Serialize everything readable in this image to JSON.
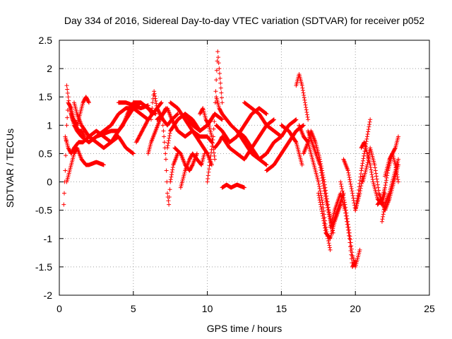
{
  "chart_data": {
    "type": "scatter",
    "title": "Day 334 of 2016, Sidereal Day-to-day VTEC variation (SDTVAR) for receiver p052",
    "xlabel": "GPS time / hours",
    "ylabel": "SDTVAR / TECUs",
    "xlim": [
      0,
      25
    ],
    "ylim": [
      -2,
      2.5
    ],
    "x_ticks": [
      0,
      5,
      10,
      15,
      20,
      25
    ],
    "x_tick_labels": [
      "0",
      "5",
      "10",
      "15",
      "20",
      "25"
    ],
    "y_ticks": [
      -2,
      -1.5,
      -1,
      -0.5,
      0,
      0.5,
      1,
      1.5,
      2,
      2.5
    ],
    "y_tick_labels": [
      "-2",
      "-1.5",
      "-1",
      "-0.5",
      "0",
      "0.5",
      "1",
      "1.5",
      "2",
      "2.5"
    ],
    "grid": true,
    "marker": "+",
    "series": [
      {
        "name": "SDTVAR",
        "color": "#ff0000",
        "tracks": [
          {
            "x": [
              0.3,
              0.4,
              0.5,
              0.6,
              0.8,
              1.0,
              1.2,
              1.4,
              1.6,
              1.8,
              2.0
            ],
            "y": [
              -0.4,
              0.2,
              1.0,
              1.4,
              1.3,
              1.1,
              1.0,
              1.2,
              1.4,
              1.5,
              1.4
            ]
          },
          {
            "x": [
              0.4,
              0.6,
              0.8,
              1.0,
              1.3,
              1.6,
              2.0,
              2.5,
              3.0,
              3.5,
              4.0,
              4.5,
              5.0,
              5.5,
              6.0,
              6.3
            ],
            "y": [
              0.8,
              0.6,
              0.5,
              0.6,
              0.7,
              0.7,
              0.8,
              0.9,
              0.8,
              0.7,
              0.9,
              1.1,
              1.3,
              1.4,
              1.3,
              1.2
            ]
          },
          {
            "x": [
              0.5,
              0.8,
              1.0,
              1.2,
              1.5,
              1.8,
              2.0,
              2.5,
              3.0
            ],
            "y": [
              0.0,
              0.3,
              0.5,
              0.6,
              0.4,
              0.3,
              0.3,
              0.35,
              0.3
            ]
          },
          {
            "x": [
              0.8,
              1.0,
              1.2,
              1.5,
              2.0,
              2.5,
              3.0,
              3.5,
              4.0,
              4.5,
              5.0,
              5.5,
              6.0
            ],
            "y": [
              1.2,
              1.0,
              0.9,
              0.8,
              0.7,
              0.8,
              0.9,
              1.0,
              1.2,
              1.3,
              1.3,
              1.2,
              1.1
            ]
          },
          {
            "x": [
              1.0,
              1.2,
              1.5,
              2.0,
              2.5,
              3.0,
              3.5,
              4.0,
              4.5,
              5.0
            ],
            "y": [
              1.4,
              1.2,
              1.0,
              0.8,
              0.7,
              0.6,
              0.7,
              0.8,
              0.6,
              0.5
            ]
          },
          {
            "x": [
              0.5,
              0.6,
              0.7,
              0.9,
              1.1,
              1.3,
              1.5,
              1.7
            ],
            "y": [
              1.7,
              1.5,
              1.3,
              1.1,
              1.0,
              0.9,
              0.9,
              0.8
            ]
          },
          {
            "x": [
              2.0,
              2.5,
              3.0,
              3.5,
              4.0,
              4.3,
              4.6,
              5.0,
              5.5,
              6.0,
              6.5
            ],
            "y": [
              0.7,
              0.8,
              0.85,
              0.9,
              0.9,
              1.0,
              1.2,
              1.4,
              1.4,
              1.3,
              1.2
            ]
          },
          {
            "x": [
              4.0,
              4.5,
              5.0,
              5.5,
              6.0
            ],
            "y": [
              1.4,
              1.4,
              1.35,
              1.3,
              1.35
            ]
          },
          {
            "x": [
              5.2,
              5.6,
              6.0,
              6.3,
              6.6,
              6.9
            ],
            "y": [
              0.7,
              0.9,
              1.1,
              1.2,
              1.3,
              1.4
            ]
          },
          {
            "x": [
              6.0,
              6.2,
              6.5,
              6.8,
              7.0,
              7.2
            ],
            "y": [
              0.5,
              0.7,
              0.9,
              1.1,
              1.2,
              1.3
            ]
          },
          {
            "x": [
              6.2,
              6.3,
              6.4,
              6.6,
              6.8,
              7.0,
              7.3,
              7.6,
              8.0
            ],
            "y": [
              1.1,
              1.4,
              1.6,
              1.3,
              1.2,
              1.1,
              1.0,
              1.1,
              1.2
            ]
          },
          {
            "x": [
              6.6,
              7.0,
              7.3,
              7.6,
              8.0,
              8.5,
              9.0,
              9.5,
              10.0,
              10.3
            ],
            "y": [
              1.1,
              1.2,
              1.3,
              1.1,
              0.9,
              0.8,
              0.9,
              0.8,
              0.8,
              0.7
            ]
          },
          {
            "x": [
              7.0,
              7.1,
              7.2,
              7.3,
              7.4,
              7.5,
              7.7,
              8.0
            ],
            "y": [
              1.0,
              0.7,
              0.4,
              -0.2,
              -0.4,
              0.0,
              0.3,
              0.5
            ]
          },
          {
            "x": [
              7.3,
              7.5,
              8.0,
              8.5,
              9.0,
              9.5,
              10.0,
              10.5
            ],
            "y": [
              0.6,
              0.9,
              1.1,
              1.2,
              1.0,
              0.9,
              1.0,
              1.2
            ]
          },
          {
            "x": [
              7.5,
              8.0,
              8.5,
              9.0,
              9.5,
              10.0,
              10.3
            ],
            "y": [
              1.4,
              1.3,
              1.1,
              0.9,
              0.7,
              0.5,
              0.3
            ]
          },
          {
            "x": [
              7.8,
              8.2,
              8.5,
              8.8,
              9.0,
              9.3
            ],
            "y": [
              0.6,
              0.5,
              0.3,
              0.2,
              0.3,
              0.5
            ]
          },
          {
            "x": [
              8.2,
              8.5,
              8.8,
              9.0,
              9.3,
              9.6,
              9.8
            ],
            "y": [
              -0.1,
              0.2,
              0.4,
              0.5,
              0.4,
              0.3,
              0.5
            ]
          },
          {
            "x": [
              8.5,
              9.0,
              9.5,
              10.0,
              10.5,
              11.0
            ],
            "y": [
              1.2,
              1.1,
              0.9,
              1.0,
              1.2,
              1.1
            ]
          },
          {
            "x": [
              9.5,
              9.7,
              9.9,
              10.1,
              10.3,
              10.5
            ],
            "y": [
              1.2,
              1.3,
              1.1,
              1.0,
              0.8,
              0.4
            ]
          },
          {
            "x": [
              10.0,
              10.2,
              10.4,
              10.5,
              10.6,
              10.7,
              10.8,
              11.0
            ],
            "y": [
              0.0,
              0.4,
              0.8,
              1.2,
              1.8,
              2.3,
              2.0,
              1.4
            ]
          },
          {
            "x": [
              10.6,
              10.8,
              11.0,
              11.3,
              11.6,
              12.0,
              12.5,
              13.0,
              13.5,
              14.0
            ],
            "y": [
              1.5,
              1.3,
              1.2,
              1.1,
              1.0,
              0.9,
              0.7,
              0.5,
              0.4,
              0.3
            ]
          },
          {
            "x": [
              10.5,
              10.8,
              11.0,
              11.5,
              12.0,
              12.5,
              13.0,
              13.5,
              14.0,
              14.5
            ],
            "y": [
              0.6,
              0.7,
              0.8,
              0.6,
              0.5,
              0.4,
              0.6,
              0.8,
              1.0,
              1.1
            ]
          },
          {
            "x": [
              10.6,
              11.0,
              11.5,
              12.0,
              12.5,
              13.0,
              13.5,
              14.0
            ],
            "y": [
              1.0,
              0.9,
              0.7,
              0.8,
              1.0,
              1.2,
              1.3,
              1.2
            ]
          },
          {
            "x": [
              11.0,
              11.3,
              11.6,
              12.0,
              12.5
            ],
            "y": [
              -0.1,
              -0.05,
              -0.1,
              -0.05,
              -0.1
            ]
          },
          {
            "x": [
              12.0,
              12.5,
              13.0,
              13.5,
              14.0,
              14.5,
              15.0
            ],
            "y": [
              0.9,
              0.8,
              0.6,
              0.4,
              0.5,
              0.7,
              0.8
            ]
          },
          {
            "x": [
              12.5,
              13.0,
              13.5,
              14.0,
              14.5,
              15.0,
              15.5,
              16.0
            ],
            "y": [
              1.4,
              1.3,
              1.2,
              1.0,
              0.9,
              0.8,
              1.0,
              1.1
            ]
          },
          {
            "x": [
              14.0,
              14.5,
              15.0,
              15.5,
              16.0,
              16.5
            ],
            "y": [
              0.2,
              0.3,
              0.5,
              0.7,
              0.9,
              1.0
            ]
          },
          {
            "x": [
              15.0,
              15.5,
              16.0,
              16.2,
              16.4
            ],
            "y": [
              1.0,
              0.9,
              0.7,
              0.5,
              0.3
            ]
          },
          {
            "x": [
              16.0,
              16.2,
              16.4,
              16.6,
              16.8
            ],
            "y": [
              1.7,
              1.9,
              1.7,
              1.4,
              1.1
            ]
          },
          {
            "x": [
              16.2,
              16.5,
              16.8,
              17.0,
              17.2,
              17.5,
              17.8,
              18.0,
              18.3
            ],
            "y": [
              1.0,
              0.8,
              0.7,
              0.5,
              0.3,
              0.0,
              -0.4,
              -0.8,
              -1.2
            ]
          },
          {
            "x": [
              16.5,
              16.8,
              17.0,
              17.3,
              17.6,
              17.9,
              18.2,
              18.5
            ],
            "y": [
              0.5,
              0.7,
              0.9,
              0.7,
              0.4,
              0.0,
              -0.5,
              -0.9
            ]
          },
          {
            "x": [
              16.8,
              17.2,
              17.6,
              18.0,
              18.4,
              18.8,
              19.2
            ],
            "y": [
              0.9,
              0.6,
              0.3,
              -0.3,
              -0.8,
              -0.5,
              -0.2
            ]
          },
          {
            "x": [
              17.5,
              17.8,
              18.0,
              18.3,
              18.6,
              19.0
            ],
            "y": [
              -0.2,
              -0.6,
              -0.9,
              -1.0,
              -0.7,
              -0.4
            ]
          },
          {
            "x": [
              18.3,
              18.6,
              19.0,
              19.3,
              19.6,
              19.8,
              20.0
            ],
            "y": [
              -0.8,
              -0.5,
              -0.2,
              -0.5,
              -1.0,
              -1.5,
              -1.4
            ]
          },
          {
            "x": [
              19.0,
              19.3,
              19.6,
              19.8,
              20.0,
              20.3
            ],
            "y": [
              0.0,
              -0.4,
              -0.9,
              -1.3,
              -1.5,
              -1.2
            ]
          },
          {
            "x": [
              19.2,
              19.5,
              19.8,
              20.0,
              20.3,
              20.5
            ],
            "y": [
              0.4,
              0.2,
              -0.2,
              -0.5,
              -0.2,
              0.1
            ]
          },
          {
            "x": [
              20.0,
              20.2,
              20.4,
              20.6,
              20.8,
              21.0
            ],
            "y": [
              -0.5,
              -0.2,
              0.2,
              0.5,
              0.8,
              1.1
            ]
          },
          {
            "x": [
              20.4,
              20.6,
              20.8,
              21.0,
              21.2,
              21.5,
              21.8,
              22.0
            ],
            "y": [
              0.6,
              0.7,
              0.5,
              0.3,
              0.0,
              -0.3,
              -0.4,
              -0.2
            ]
          },
          {
            "x": [
              20.5,
              20.8,
              21.0,
              21.3,
              21.6,
              22.0,
              22.3,
              22.6,
              22.9
            ],
            "y": [
              0.0,
              0.3,
              0.6,
              0.3,
              -0.2,
              -0.5,
              -0.3,
              0.0,
              0.3
            ]
          },
          {
            "x": [
              21.5,
              21.8,
              22.0,
              22.2,
              22.5,
              22.7,
              22.9
            ],
            "y": [
              -0.4,
              -0.3,
              -0.1,
              0.2,
              0.5,
              0.6,
              0.8
            ]
          },
          {
            "x": [
              21.8,
              22.0,
              22.3,
              22.6,
              22.9
            ],
            "y": [
              -0.7,
              -0.4,
              -0.2,
              0.1,
              0.4
            ]
          },
          {
            "x": [
              22.0,
              22.3,
              22.5,
              22.7,
              22.9
            ],
            "y": [
              0.1,
              0.4,
              0.5,
              0.3,
              0.0
            ]
          }
        ]
      }
    ]
  }
}
